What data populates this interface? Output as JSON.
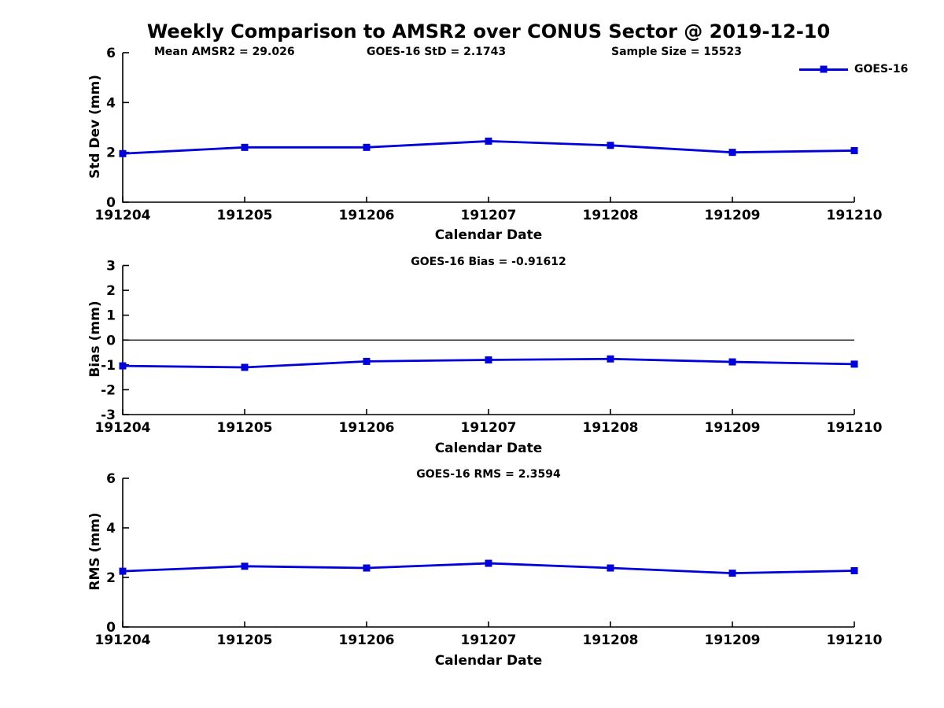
{
  "figure": {
    "title": "Weekly Comparison to AMSR2 over CONUS Sector @ 2019-12-10"
  },
  "legend": {
    "label": "GOES-16",
    "position": "top-right"
  },
  "colors": {
    "series": "#0000dd",
    "axis": "#000000",
    "text": "#000000",
    "background": "#ffffff"
  },
  "chart_data": [
    {
      "type": "line",
      "name": "std-dev-vs-date",
      "title": "",
      "annotations": [
        "Mean AMSR2 = 29.026",
        "GOES-16 StD = 2.1743",
        "Sample Size = 15523"
      ],
      "categories": [
        "191204",
        "191205",
        "191206",
        "191207",
        "191208",
        "191209",
        "191210"
      ],
      "series": [
        {
          "name": "GOES-16",
          "values": [
            1.95,
            2.2,
            2.2,
            2.45,
            2.28,
            2.0,
            2.07
          ]
        }
      ],
      "xlabel": "Calendar Date",
      "ylabel": "Std Dev (mm)",
      "ylim": [
        0,
        6
      ],
      "yticks": [
        0,
        2,
        4,
        6
      ],
      "zero_line": false,
      "marker": "square",
      "grid": false,
      "legend_position": "top-right"
    },
    {
      "type": "line",
      "name": "bias-vs-date",
      "title": "GOES-16 Bias  = -0.91612",
      "annotations": [],
      "categories": [
        "191204",
        "191205",
        "191206",
        "191207",
        "191208",
        "191209",
        "191210"
      ],
      "series": [
        {
          "name": "GOES-16",
          "values": [
            -1.04,
            -1.1,
            -0.86,
            -0.8,
            -0.76,
            -0.88,
            -0.97
          ]
        }
      ],
      "xlabel": "Calendar Date",
      "ylabel": "Bias (mm)",
      "ylim": [
        -3,
        3
      ],
      "yticks": [
        -3,
        -2,
        -1,
        0,
        1,
        2,
        3
      ],
      "zero_line": true,
      "marker": "square",
      "grid": false
    },
    {
      "type": "line",
      "name": "rms-vs-date",
      "title": "GOES-16 RMS = 2.3594",
      "annotations": [],
      "categories": [
        "191204",
        "191205",
        "191206",
        "191207",
        "191208",
        "191209",
        "191210"
      ],
      "series": [
        {
          "name": "GOES-16",
          "values": [
            2.25,
            2.45,
            2.38,
            2.57,
            2.38,
            2.17,
            2.27
          ]
        }
      ],
      "xlabel": "Calendar Date",
      "ylabel": "RMS (mm)",
      "ylim": [
        0,
        6
      ],
      "yticks": [
        0,
        2,
        4,
        6
      ],
      "zero_line": false,
      "marker": "square",
      "grid": false
    }
  ]
}
